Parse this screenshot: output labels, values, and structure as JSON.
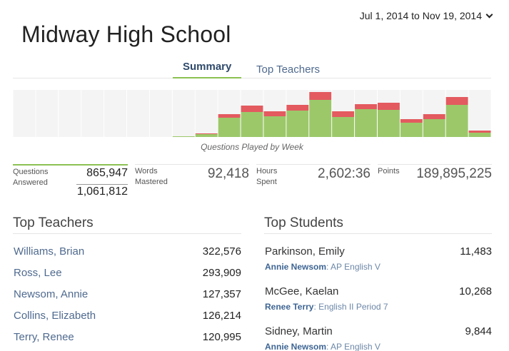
{
  "header": {
    "date_range": "Jul 1, 2014 to Nov 19, 2014",
    "title": "Midway High School"
  },
  "tabs": [
    {
      "label": "Summary",
      "active": true
    },
    {
      "label": "Top Teachers",
      "active": false
    }
  ],
  "colors": {
    "green": "#9cc86a",
    "red": "#e35a5f",
    "bg": "#f4f4f4",
    "accent": "#8cc152"
  },
  "chart_data": {
    "type": "bar",
    "title": "Questions Played by Week",
    "stacked": true,
    "categories": [
      "1",
      "2",
      "3",
      "4",
      "5",
      "6",
      "7",
      "8",
      "9",
      "10",
      "11",
      "12",
      "13",
      "14",
      "15",
      "16",
      "17",
      "18",
      "19",
      "20",
      "21"
    ],
    "series": [
      {
        "values": [
          0,
          0,
          0,
          0,
          0,
          0,
          0,
          1,
          4,
          27,
          35,
          29,
          37,
          52,
          28,
          39,
          38,
          20,
          25,
          45,
          6
        ]
      },
      {
        "values": [
          0,
          0,
          0,
          0,
          0,
          0,
          0,
          0,
          1,
          5,
          9,
          7,
          8,
          11,
          8,
          7,
          10,
          5,
          7,
          11,
          3
        ]
      }
    ],
    "ylim": [
      0,
      66
    ]
  },
  "stats": {
    "questions": {
      "label_1": "Questions",
      "label_2": "Answered",
      "value": "865,947",
      "total": "1,061,812"
    },
    "words": {
      "label_1": "Words",
      "label_2": "Mastered",
      "value": "92,418"
    },
    "hours": {
      "label_1": "Hours",
      "label_2": "Spent",
      "value": "2,602:36"
    },
    "points": {
      "label_1": "Points",
      "value": "189,895,225"
    }
  },
  "top_teachers": {
    "heading": "Top Teachers",
    "rows": [
      {
        "name": "Williams, Brian",
        "value": "322,576"
      },
      {
        "name": "Ross, Lee",
        "value": "293,909"
      },
      {
        "name": "Newsom, Annie",
        "value": "127,357"
      },
      {
        "name": "Collins, Elizabeth",
        "value": "126,214"
      },
      {
        "name": "Terry, Renee",
        "value": "120,995"
      }
    ]
  },
  "top_students": {
    "heading": "Top Students",
    "rows": [
      {
        "name": "Parkinson, Emily",
        "value": "11,483",
        "teacher": "Annie Newsom",
        "class": "AP English V"
      },
      {
        "name": "McGee, Kaelan",
        "value": "10,268",
        "teacher": "Renee Terry",
        "class": "English II Period 7"
      },
      {
        "name": "Sidney, Martin",
        "value": "9,844",
        "teacher": "Annie Newsom",
        "class": "AP English V"
      }
    ]
  }
}
